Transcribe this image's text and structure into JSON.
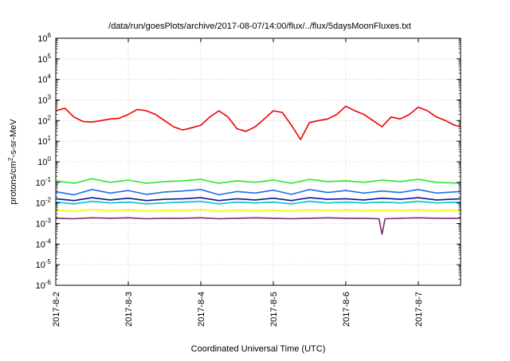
{
  "chart_data": {
    "type": "line",
    "title": "/data/run/goesPlots/archive/2017-08-07/14:00/flux/../flux/5daysMoonFluxes.txt",
    "xlabel": "Coordinated Universal Time (UTC)",
    "ylabel": {
      "prefix": "protons/cm",
      "sup": "2",
      "suffix": "-s-sr-MeV"
    },
    "xlim": [
      "2017-08-02T00:00",
      "2017-08-07T14:00"
    ],
    "y_scale": "log",
    "ylim": [
      1e-06,
      1000000.0
    ],
    "grid": true,
    "legend": "none",
    "x_ticks": [
      "2017-8-2",
      "2017-8-3",
      "2017-8-4",
      "2017-8-5",
      "2017-8-6",
      "2017-8-7"
    ],
    "y_ticks": [
      {
        "base": "10",
        "exp": "-6",
        "value": 1e-06
      },
      {
        "base": "10",
        "exp": "-5",
        "value": 1e-05
      },
      {
        "base": "10",
        "exp": "-4",
        "value": 0.0001
      },
      {
        "base": "10",
        "exp": "-3",
        "value": 0.001
      },
      {
        "base": "10",
        "exp": "-2",
        "value": 0.01
      },
      {
        "base": "10",
        "exp": "-1",
        "value": 0.1
      },
      {
        "base": "10",
        "exp": "0",
        "value": 1
      },
      {
        "base": "10",
        "exp": "1",
        "value": 10
      },
      {
        "base": "10",
        "exp": "2",
        "value": 100
      },
      {
        "base": "10",
        "exp": "3",
        "value": 1000
      },
      {
        "base": "10",
        "exp": "4",
        "value": 10000
      },
      {
        "base": "10",
        "exp": "5",
        "value": 100000
      },
      {
        "base": "10",
        "exp": "6",
        "value": 1000000
      }
    ],
    "series": [
      {
        "color": "#7a2a6e",
        "points": [
          [
            "2017-08-02T00:00",
            0.0018
          ],
          [
            "2017-08-02T06:00",
            0.0017
          ],
          [
            "2017-08-02T12:00",
            0.0019
          ],
          [
            "2017-08-02T18:00",
            0.0018
          ],
          [
            "2017-08-03T00:00",
            0.0019
          ],
          [
            "2017-08-03T06:00",
            0.0017
          ],
          [
            "2017-08-03T12:00",
            0.0018
          ],
          [
            "2017-08-03T18:00",
            0.0018
          ],
          [
            "2017-08-04T00:00",
            0.0019
          ],
          [
            "2017-08-04T06:00",
            0.0017
          ],
          [
            "2017-08-04T12:00",
            0.0018
          ],
          [
            "2017-08-04T18:00",
            0.0019
          ],
          [
            "2017-08-05T00:00",
            0.0018
          ],
          [
            "2017-08-05T06:00",
            0.0017
          ],
          [
            "2017-08-05T12:00",
            0.0018
          ],
          [
            "2017-08-05T18:00",
            0.0019
          ],
          [
            "2017-08-06T00:00",
            0.0018
          ],
          [
            "2017-08-06T06:00",
            0.0018
          ],
          [
            "2017-08-06T11:00",
            0.0017
          ],
          [
            "2017-08-06T12:00",
            0.0003
          ],
          [
            "2017-08-06T13:00",
            0.0017
          ],
          [
            "2017-08-06T18:00",
            0.0018
          ],
          [
            "2017-08-07T00:00",
            0.0019
          ],
          [
            "2017-08-07T06:00",
            0.0018
          ],
          [
            "2017-08-07T14:00",
            0.0018
          ]
        ]
      },
      {
        "color": "#f5f500",
        "points": [
          [
            "2017-08-02T00:00",
            0.0045
          ],
          [
            "2017-08-02T06:00",
            0.004
          ],
          [
            "2017-08-02T12:00",
            0.0048
          ],
          [
            "2017-08-02T18:00",
            0.0042
          ],
          [
            "2017-08-03T00:00",
            0.0046
          ],
          [
            "2017-08-03T06:00",
            0.0041
          ],
          [
            "2017-08-03T12:00",
            0.0044
          ],
          [
            "2017-08-03T18:00",
            0.0043
          ],
          [
            "2017-08-04T00:00",
            0.0047
          ],
          [
            "2017-08-04T06:00",
            0.004
          ],
          [
            "2017-08-04T12:00",
            0.0045
          ],
          [
            "2017-08-04T18:00",
            0.0042
          ],
          [
            "2017-08-05T00:00",
            0.0044
          ],
          [
            "2017-08-05T06:00",
            0.0041
          ],
          [
            "2017-08-05T12:00",
            0.0046
          ],
          [
            "2017-08-05T18:00",
            0.0043
          ],
          [
            "2017-08-06T00:00",
            0.0045
          ],
          [
            "2017-08-06T06:00",
            0.0042
          ],
          [
            "2017-08-06T12:00",
            0.0044
          ],
          [
            "2017-08-06T18:00",
            0.0043
          ],
          [
            "2017-08-07T00:00",
            0.0046
          ],
          [
            "2017-08-07T06:00",
            0.0042
          ],
          [
            "2017-08-07T14:00",
            0.0045
          ]
        ]
      },
      {
        "color": "#00c8c8",
        "points": [
          [
            "2017-08-02T00:00",
            0.011
          ],
          [
            "2017-08-02T06:00",
            0.009
          ],
          [
            "2017-08-02T12:00",
            0.012
          ],
          [
            "2017-08-02T18:00",
            0.01
          ],
          [
            "2017-08-03T00:00",
            0.011
          ],
          [
            "2017-08-03T06:00",
            0.009
          ],
          [
            "2017-08-03T12:00",
            0.01
          ],
          [
            "2017-08-03T18:00",
            0.011
          ],
          [
            "2017-08-04T00:00",
            0.012
          ],
          [
            "2017-08-04T06:00",
            0.009
          ],
          [
            "2017-08-04T12:00",
            0.011
          ],
          [
            "2017-08-04T18:00",
            0.01
          ],
          [
            "2017-08-05T00:00",
            0.011
          ],
          [
            "2017-08-05T06:00",
            0.009
          ],
          [
            "2017-08-05T12:00",
            0.012
          ],
          [
            "2017-08-05T18:00",
            0.01
          ],
          [
            "2017-08-06T00:00",
            0.011
          ],
          [
            "2017-08-06T06:00",
            0.01
          ],
          [
            "2017-08-06T12:00",
            0.011
          ],
          [
            "2017-08-06T18:00",
            0.01
          ],
          [
            "2017-08-07T00:00",
            0.012
          ],
          [
            "2017-08-07T06:00",
            0.01
          ],
          [
            "2017-08-07T14:00",
            0.011
          ]
        ]
      },
      {
        "color": "#1010a0",
        "points": [
          [
            "2017-08-02T00:00",
            0.016
          ],
          [
            "2017-08-02T06:00",
            0.013
          ],
          [
            "2017-08-02T12:00",
            0.018
          ],
          [
            "2017-08-02T18:00",
            0.014
          ],
          [
            "2017-08-03T00:00",
            0.017
          ],
          [
            "2017-08-03T06:00",
            0.013
          ],
          [
            "2017-08-03T12:00",
            0.015
          ],
          [
            "2017-08-03T18:00",
            0.016
          ],
          [
            "2017-08-04T00:00",
            0.018
          ],
          [
            "2017-08-04T06:00",
            0.013
          ],
          [
            "2017-08-04T12:00",
            0.016
          ],
          [
            "2017-08-04T18:00",
            0.014
          ],
          [
            "2017-08-05T00:00",
            0.017
          ],
          [
            "2017-08-05T06:00",
            0.013
          ],
          [
            "2017-08-05T12:00",
            0.018
          ],
          [
            "2017-08-05T18:00",
            0.015
          ],
          [
            "2017-08-06T00:00",
            0.016
          ],
          [
            "2017-08-06T06:00",
            0.014
          ],
          [
            "2017-08-06T12:00",
            0.017
          ],
          [
            "2017-08-06T18:00",
            0.015
          ],
          [
            "2017-08-07T00:00",
            0.018
          ],
          [
            "2017-08-07T06:00",
            0.014
          ],
          [
            "2017-08-07T14:00",
            0.016
          ]
        ]
      },
      {
        "color": "#1e6ef0",
        "points": [
          [
            "2017-08-02T00:00",
            0.035
          ],
          [
            "2017-08-02T06:00",
            0.025
          ],
          [
            "2017-08-02T12:00",
            0.045
          ],
          [
            "2017-08-02T18:00",
            0.03
          ],
          [
            "2017-08-03T00:00",
            0.04
          ],
          [
            "2017-08-03T06:00",
            0.026
          ],
          [
            "2017-08-03T12:00",
            0.034
          ],
          [
            "2017-08-03T18:00",
            0.038
          ],
          [
            "2017-08-04T00:00",
            0.045
          ],
          [
            "2017-08-04T06:00",
            0.025
          ],
          [
            "2017-08-04T12:00",
            0.036
          ],
          [
            "2017-08-04T18:00",
            0.03
          ],
          [
            "2017-08-05T00:00",
            0.042
          ],
          [
            "2017-08-05T06:00",
            0.026
          ],
          [
            "2017-08-05T12:00",
            0.045
          ],
          [
            "2017-08-05T18:00",
            0.032
          ],
          [
            "2017-08-06T00:00",
            0.04
          ],
          [
            "2017-08-06T06:00",
            0.03
          ],
          [
            "2017-08-06T12:00",
            0.038
          ],
          [
            "2017-08-06T18:00",
            0.032
          ],
          [
            "2017-08-07T00:00",
            0.045
          ],
          [
            "2017-08-07T06:00",
            0.03
          ],
          [
            "2017-08-07T14:00",
            0.036
          ]
        ]
      },
      {
        "color": "#32e632",
        "points": [
          [
            "2017-08-02T00:00",
            0.12
          ],
          [
            "2017-08-02T06:00",
            0.09
          ],
          [
            "2017-08-02T12:00",
            0.15
          ],
          [
            "2017-08-02T18:00",
            0.1
          ],
          [
            "2017-08-03T00:00",
            0.13
          ],
          [
            "2017-08-03T06:00",
            0.09
          ],
          [
            "2017-08-03T12:00",
            0.11
          ],
          [
            "2017-08-03T18:00",
            0.12
          ],
          [
            "2017-08-04T00:00",
            0.14
          ],
          [
            "2017-08-04T06:00",
            0.09
          ],
          [
            "2017-08-04T12:00",
            0.12
          ],
          [
            "2017-08-04T18:00",
            0.1
          ],
          [
            "2017-08-05T00:00",
            0.13
          ],
          [
            "2017-08-05T06:00",
            0.09
          ],
          [
            "2017-08-05T12:00",
            0.14
          ],
          [
            "2017-08-05T18:00",
            0.11
          ],
          [
            "2017-08-06T00:00",
            0.12
          ],
          [
            "2017-08-06T06:00",
            0.1
          ],
          [
            "2017-08-06T12:00",
            0.13
          ],
          [
            "2017-08-06T18:00",
            0.11
          ],
          [
            "2017-08-07T00:00",
            0.14
          ],
          [
            "2017-08-07T06:00",
            0.1
          ],
          [
            "2017-08-07T14:00",
            0.09
          ]
        ]
      },
      {
        "color": "#f00000",
        "points": [
          [
            "2017-08-02T00:00",
            300
          ],
          [
            "2017-08-02T03:00",
            400
          ],
          [
            "2017-08-02T06:00",
            150
          ],
          [
            "2017-08-02T09:00",
            90
          ],
          [
            "2017-08-02T12:00",
            85
          ],
          [
            "2017-08-02T15:00",
            100
          ],
          [
            "2017-08-02T18:00",
            120
          ],
          [
            "2017-08-02T21:00",
            130
          ],
          [
            "2017-08-03T00:00",
            200
          ],
          [
            "2017-08-03T03:00",
            350
          ],
          [
            "2017-08-03T06:00",
            300
          ],
          [
            "2017-08-03T09:00",
            200
          ],
          [
            "2017-08-03T12:00",
            100
          ],
          [
            "2017-08-03T15:00",
            50
          ],
          [
            "2017-08-03T18:00",
            35
          ],
          [
            "2017-08-03T21:00",
            45
          ],
          [
            "2017-08-04T00:00",
            60
          ],
          [
            "2017-08-04T03:00",
            150
          ],
          [
            "2017-08-04T06:00",
            300
          ],
          [
            "2017-08-04T09:00",
            150
          ],
          [
            "2017-08-04T12:00",
            40
          ],
          [
            "2017-08-04T15:00",
            30
          ],
          [
            "2017-08-04T18:00",
            50
          ],
          [
            "2017-08-04T21:00",
            120
          ],
          [
            "2017-08-05T00:00",
            300
          ],
          [
            "2017-08-05T03:00",
            250
          ],
          [
            "2017-08-05T06:00",
            60
          ],
          [
            "2017-08-05T09:00",
            12
          ],
          [
            "2017-08-05T12:00",
            80
          ],
          [
            "2017-08-05T15:00",
            100
          ],
          [
            "2017-08-05T18:00",
            120
          ],
          [
            "2017-08-05T21:00",
            200
          ],
          [
            "2017-08-06T00:00",
            500
          ],
          [
            "2017-08-06T03:00",
            300
          ],
          [
            "2017-08-06T06:00",
            200
          ],
          [
            "2017-08-06T09:00",
            100
          ],
          [
            "2017-08-06T12:00",
            50
          ],
          [
            "2017-08-06T15:00",
            150
          ],
          [
            "2017-08-06T18:00",
            120
          ],
          [
            "2017-08-06T21:00",
            200
          ],
          [
            "2017-08-07T00:00",
            450
          ],
          [
            "2017-08-07T03:00",
            300
          ],
          [
            "2017-08-07T06:00",
            150
          ],
          [
            "2017-08-07T09:00",
            100
          ],
          [
            "2017-08-07T12:00",
            60
          ],
          [
            "2017-08-07T14:00",
            50
          ]
        ]
      }
    ]
  }
}
